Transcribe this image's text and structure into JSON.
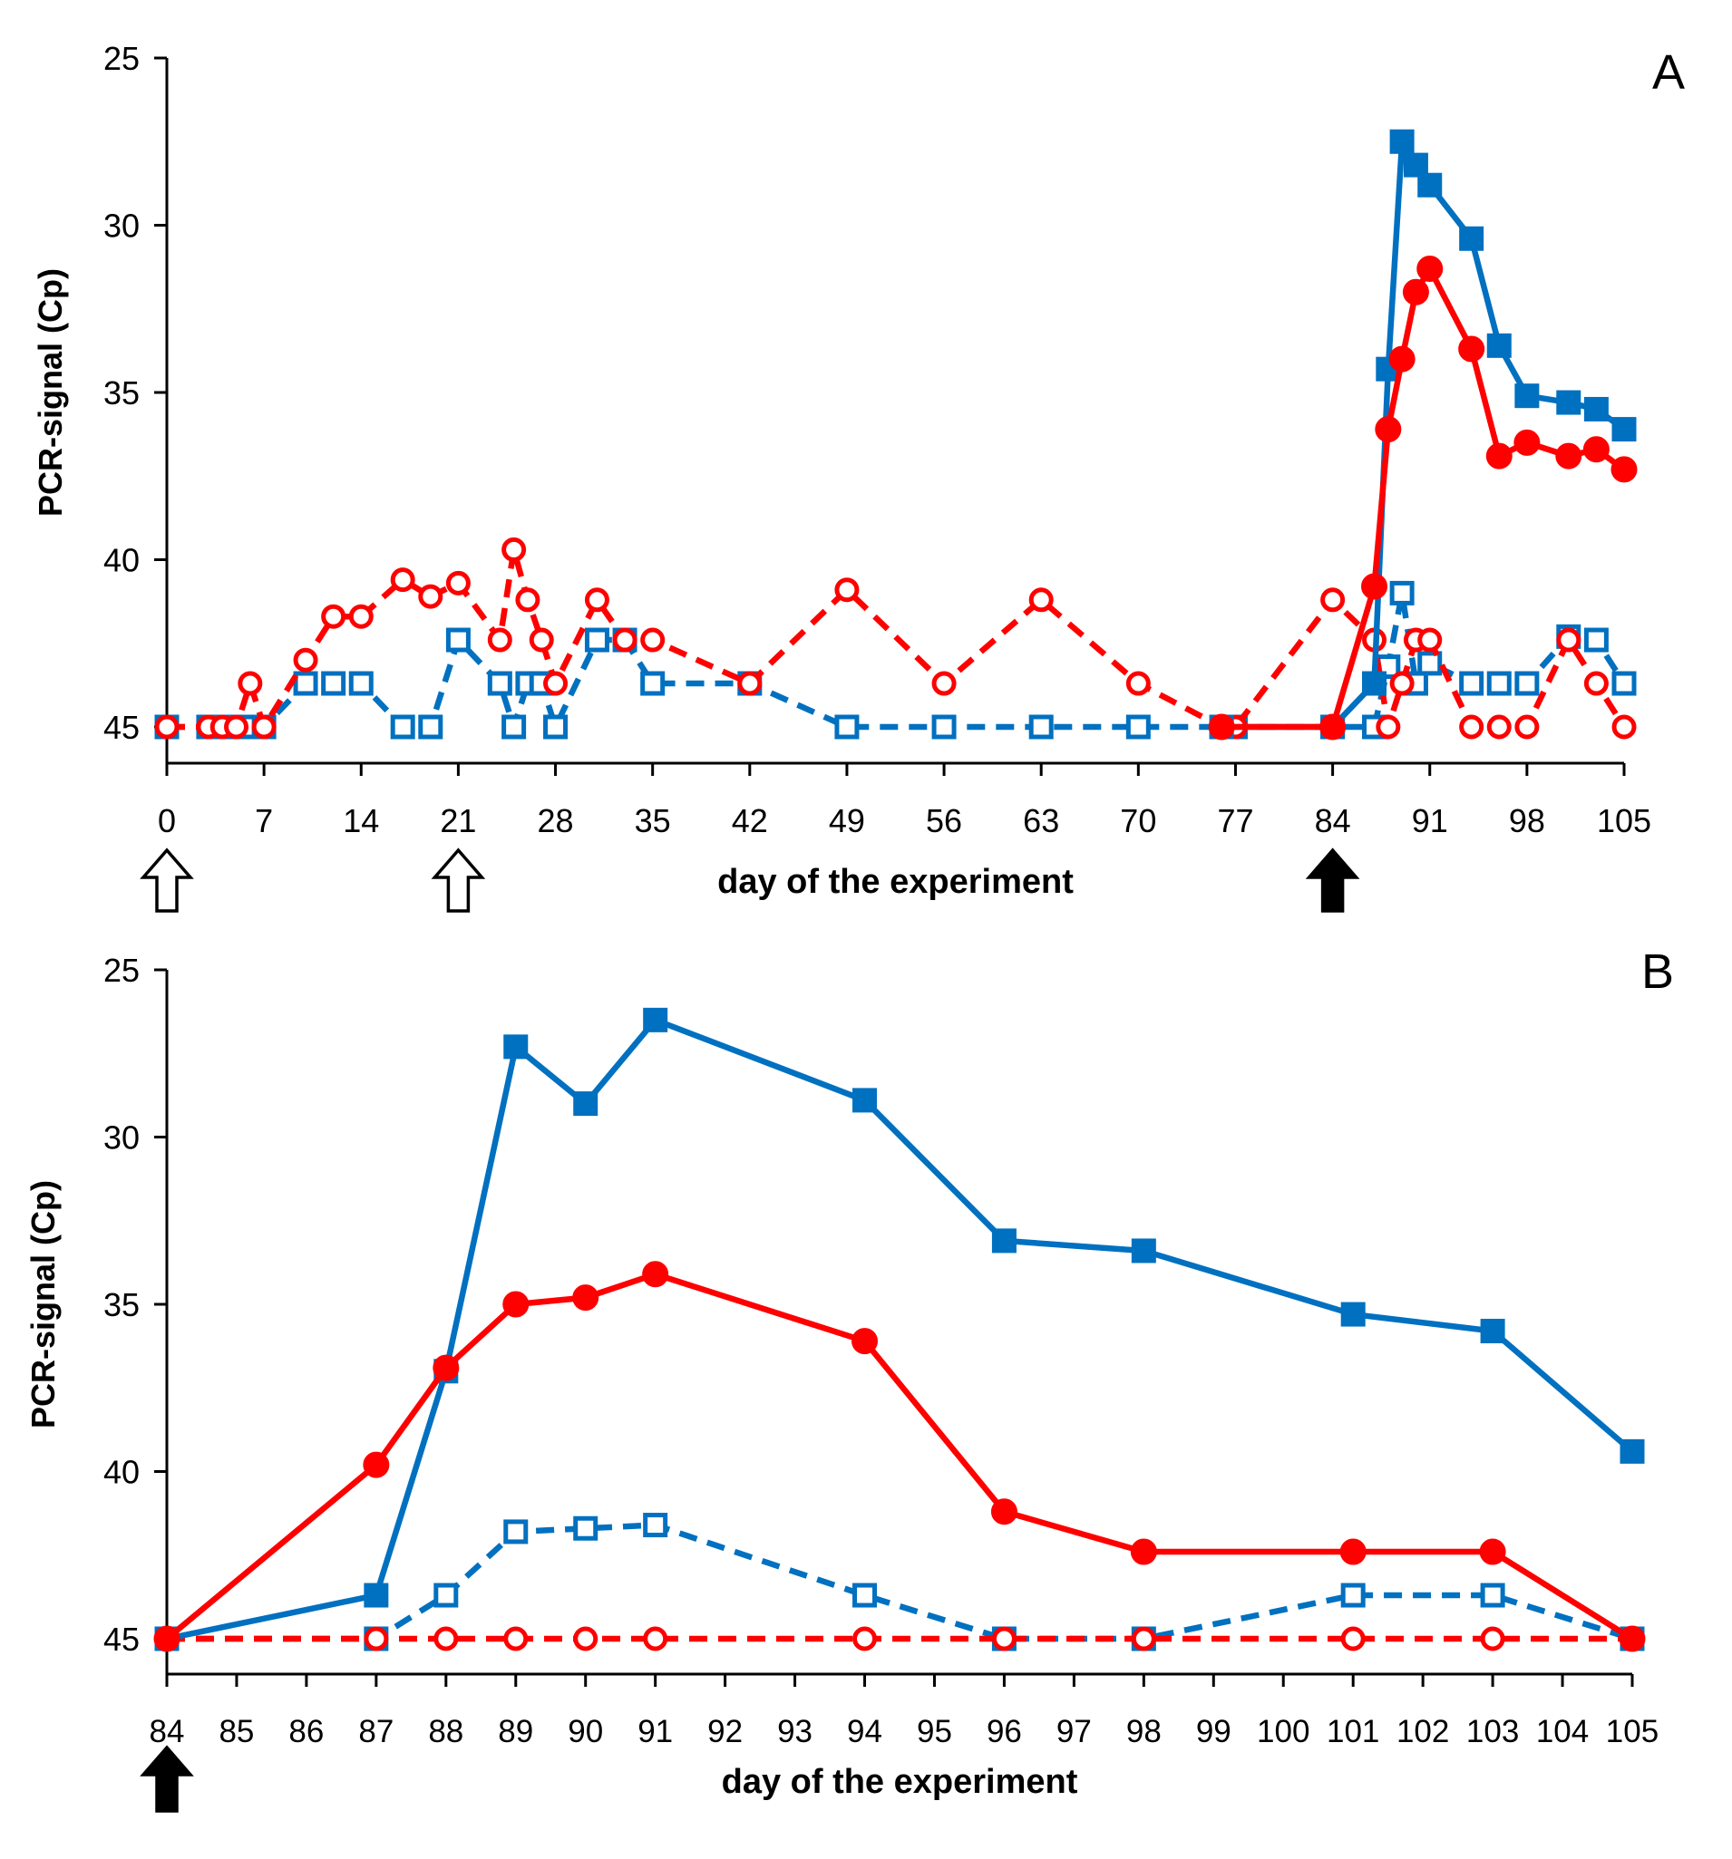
{
  "colors": {
    "blue": "#0070C0",
    "red": "#FF0000",
    "axis": "#000000"
  },
  "chart_data": [
    {
      "type": "line",
      "panel_label": "A",
      "xlabel": "day of the experiment",
      "ylabel": "PCR-signal  (Cp)",
      "xlim": [
        0,
        105
      ],
      "ylim": [
        45,
        25
      ],
      "y_inverted": true,
      "xticks": [
        "0",
        "7",
        "14",
        "21",
        "28",
        "35",
        "42",
        "49",
        "56",
        "63",
        "70",
        "77",
        "84",
        "91",
        "98",
        "105"
      ],
      "yticks": [
        "25",
        "30",
        "35",
        "40",
        "45"
      ],
      "arrows": [
        {
          "day": 0,
          "style": "open"
        },
        {
          "day": 21,
          "style": "open"
        },
        {
          "day": 84,
          "style": "filled"
        }
      ],
      "series": [
        {
          "name": "blue-filled-solid",
          "color": "#0070C0",
          "marker": "square-filled",
          "dash": false,
          "x": [
            76,
            84,
            87,
            88,
            89,
            90,
            91,
            94,
            96,
            98,
            101,
            103,
            105
          ],
          "y": [
            45,
            45,
            43.7,
            34.3,
            27.5,
            28.2,
            28.8,
            30.4,
            33.6,
            35.1,
            35.3,
            35.5,
            36.1
          ]
        },
        {
          "name": "red-filled-solid",
          "color": "#FF0000",
          "marker": "circle-filled",
          "dash": false,
          "x": [
            76,
            84,
            87,
            88,
            89,
            90,
            91,
            94,
            96,
            98,
            101,
            103,
            105
          ],
          "y": [
            45,
            45,
            40.8,
            36.1,
            34.0,
            32.0,
            31.3,
            33.7,
            36.9,
            36.5,
            36.9,
            36.7,
            37.3
          ]
        },
        {
          "name": "blue-open-dashed",
          "color": "#0070C0",
          "marker": "square-open",
          "dash": true,
          "x": [
            0,
            3,
            4,
            5,
            6,
            7,
            10,
            12,
            14,
            17,
            19,
            21,
            24,
            25,
            26,
            27,
            28,
            31,
            33,
            35,
            42,
            49,
            56,
            63,
            70,
            76,
            77,
            84,
            87,
            88,
            89,
            90,
            91,
            94,
            96,
            98,
            101,
            103,
            105
          ],
          "y": [
            45,
            45,
            45,
            45,
            45,
            45,
            43.7,
            43.7,
            43.7,
            45,
            45,
            42.4,
            43.7,
            45,
            43.7,
            43.7,
            45,
            42.4,
            42.4,
            43.7,
            43.7,
            45,
            45,
            45,
            45,
            45,
            45,
            45,
            45,
            43.2,
            41.0,
            43.7,
            43.1,
            43.7,
            43.7,
            43.7,
            42.3,
            42.4,
            43.7
          ]
        },
        {
          "name": "red-open-dashed",
          "color": "#FF0000",
          "marker": "circle-open",
          "dash": true,
          "x": [
            0,
            3,
            4,
            5,
            6,
            7,
            10,
            12,
            14,
            17,
            19,
            21,
            24,
            25,
            26,
            27,
            28,
            31,
            33,
            35,
            42,
            49,
            56,
            63,
            70,
            76,
            77,
            84,
            87,
            88,
            89,
            90,
            91,
            94,
            96,
            98,
            101,
            103,
            105
          ],
          "y": [
            45,
            45,
            45,
            45,
            43.7,
            45,
            43.0,
            41.7,
            41.7,
            40.6,
            41.1,
            40.7,
            42.4,
            39.7,
            41.2,
            42.4,
            43.7,
            41.2,
            42.4,
            42.4,
            43.7,
            40.9,
            43.7,
            41.2,
            43.7,
            45,
            45,
            41.2,
            42.4,
            45,
            43.7,
            42.4,
            42.4,
            45,
            45,
            45,
            42.4,
            43.7,
            45
          ]
        }
      ]
    },
    {
      "type": "line",
      "panel_label": "B",
      "xlabel": "day of the experiment",
      "ylabel": "PCR-signal  (Cp)",
      "categories": [
        "84",
        "85",
        "86",
        "87",
        "88",
        "89",
        "90",
        "91",
        "92",
        "93",
        "94",
        "95",
        "96",
        "97",
        "98",
        "99",
        "100",
        "101",
        "102",
        "103",
        "104",
        "105"
      ],
      "ylim": [
        45,
        25
      ],
      "y_inverted": true,
      "yticks": [
        "25",
        "30",
        "35",
        "40",
        "45"
      ],
      "arrows": [
        {
          "day": 84,
          "style": "filled"
        }
      ],
      "series": [
        {
          "name": "blue-filled-solid",
          "color": "#0070C0",
          "marker": "square-filled",
          "dash": false,
          "x": [
            84,
            87,
            88,
            89,
            90,
            91,
            94,
            96,
            98,
            101,
            103,
            105
          ],
          "y": [
            45,
            43.7,
            37.0,
            27.3,
            29.0,
            26.5,
            28.9,
            33.1,
            33.4,
            35.3,
            35.8,
            39.4
          ]
        },
        {
          "name": "red-filled-solid",
          "color": "#FF0000",
          "marker": "circle-filled",
          "dash": false,
          "x": [
            84,
            87,
            88,
            89,
            90,
            91,
            94,
            96,
            98,
            101,
            103,
            105
          ],
          "y": [
            45,
            39.8,
            36.9,
            35.0,
            34.8,
            34.1,
            36.1,
            41.2,
            42.4,
            42.4,
            42.4,
            45
          ]
        },
        {
          "name": "blue-open-dashed",
          "color": "#0070C0",
          "marker": "square-open",
          "dash": true,
          "x": [
            84,
            87,
            88,
            89,
            90,
            91,
            94,
            96,
            98,
            101,
            103,
            105
          ],
          "y": [
            45,
            45,
            43.7,
            41.8,
            41.7,
            41.6,
            43.7,
            45,
            45,
            43.7,
            43.7,
            45
          ]
        },
        {
          "name": "red-open-dashed",
          "color": "#FF0000",
          "marker": "circle-open",
          "dash": true,
          "x": [
            84,
            87,
            88,
            89,
            90,
            91,
            94,
            96,
            98,
            101,
            103,
            105
          ],
          "y": [
            45,
            45,
            45,
            45,
            45,
            45,
            45,
            45,
            45,
            45,
            45,
            45
          ]
        }
      ]
    }
  ]
}
